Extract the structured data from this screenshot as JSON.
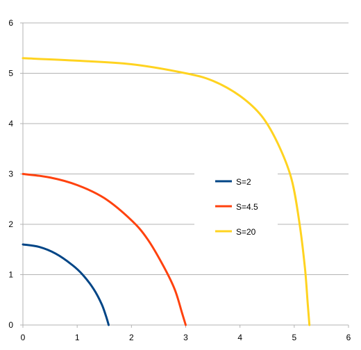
{
  "chart_data": {
    "type": "line",
    "xlim": [
      0,
      6
    ],
    "ylim": [
      0,
      6
    ],
    "x_ticks": [
      "0",
      "1",
      "2",
      "3",
      "4",
      "5",
      "6"
    ],
    "y_ticks": [
      "0",
      "1",
      "2",
      "3",
      "4",
      "5",
      "6"
    ],
    "grid": "horizontal",
    "legend_position": "center-right",
    "series": [
      {
        "name": "S=2",
        "color": "#004586",
        "points": [
          [
            0,
            1.6
          ],
          [
            0.3,
            1.55
          ],
          [
            0.6,
            1.42
          ],
          [
            0.9,
            1.2
          ],
          [
            1.1,
            1.0
          ],
          [
            1.3,
            0.72
          ],
          [
            1.45,
            0.42
          ],
          [
            1.53,
            0.18
          ],
          [
            1.58,
            0
          ]
        ]
      },
      {
        "name": "S=4.5",
        "color": "#ff420e",
        "points": [
          [
            0,
            3.0
          ],
          [
            0.5,
            2.93
          ],
          [
            1.0,
            2.78
          ],
          [
            1.5,
            2.52
          ],
          [
            2.0,
            2.08
          ],
          [
            2.3,
            1.7
          ],
          [
            2.6,
            1.15
          ],
          [
            2.8,
            0.7
          ],
          [
            2.93,
            0.25
          ],
          [
            3.0,
            0
          ]
        ]
      },
      {
        "name": "S=20",
        "color": "#ffd320",
        "points": [
          [
            0,
            5.3
          ],
          [
            1.0,
            5.25
          ],
          [
            2.0,
            5.18
          ],
          [
            3.0,
            5.0
          ],
          [
            3.5,
            4.85
          ],
          [
            4.0,
            4.55
          ],
          [
            4.4,
            4.15
          ],
          [
            4.7,
            3.6
          ],
          [
            4.95,
            2.9
          ],
          [
            5.1,
            2.0
          ],
          [
            5.2,
            1.1
          ],
          [
            5.25,
            0.4
          ],
          [
            5.28,
            0
          ]
        ]
      }
    ]
  }
}
